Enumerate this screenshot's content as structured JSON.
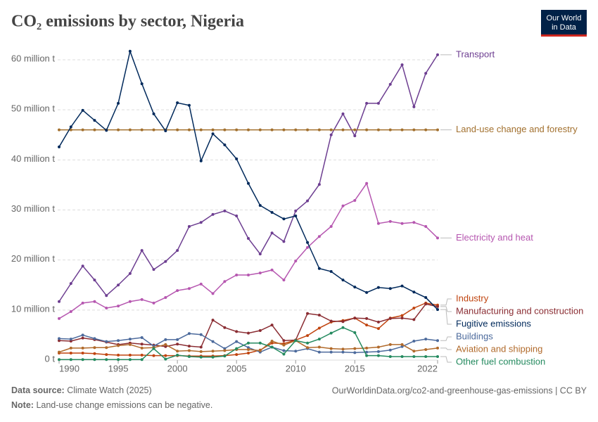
{
  "chart_data": {
    "type": "line",
    "title": "CO₂ emissions by sector, Nigeria",
    "logo": [
      "Our World",
      "in Data"
    ],
    "x": [
      1990,
      1991,
      1992,
      1993,
      1994,
      1995,
      1996,
      1997,
      1998,
      1999,
      2000,
      2001,
      2002,
      2003,
      2004,
      2005,
      2006,
      2007,
      2008,
      2009,
      2010,
      2011,
      2012,
      2013,
      2014,
      2015,
      2016,
      2017,
      2018,
      2019,
      2020,
      2021,
      2022
    ],
    "xlim": [
      1990,
      2022
    ],
    "xticks": [
      1990,
      1995,
      2000,
      2005,
      2010,
      2015,
      2022
    ],
    "ylim": [
      0,
      62
    ],
    "yticks": [
      {
        "value": 0,
        "label": "0 t"
      },
      {
        "value": 10,
        "label": "10 million t"
      },
      {
        "value": 20,
        "label": "20 million t"
      },
      {
        "value": 30,
        "label": "30 million t"
      },
      {
        "value": 40,
        "label": "40 million t"
      },
      {
        "value": 50,
        "label": "50 million t"
      },
      {
        "value": 60,
        "label": "60 million t"
      }
    ],
    "grid": true,
    "series": [
      {
        "name": "Transport",
        "color": "#6d3e91",
        "values": [
          11.7,
          15.3,
          18.8,
          16.0,
          12.9,
          15.0,
          17.3,
          21.9,
          18.1,
          19.7,
          21.9,
          26.7,
          27.5,
          29.1,
          29.8,
          28.8,
          24.3,
          21.2,
          25.4,
          23.7,
          29.8,
          31.8,
          35.1,
          45.0,
          49.2,
          44.8,
          51.3,
          51.3,
          55.1,
          59.0,
          50.6,
          57.3,
          61.0
        ]
      },
      {
        "name": "Land-use change and forestry",
        "color": "#a2702e",
        "values": [
          46,
          46,
          46,
          46,
          46,
          46,
          46,
          46,
          46,
          46,
          46,
          46,
          46,
          46,
          46,
          46,
          46,
          46,
          46,
          46,
          46,
          46,
          46,
          46,
          46,
          46,
          46,
          46,
          46,
          46,
          46,
          46,
          46
        ]
      },
      {
        "name": "Electricity and heat",
        "color": "#b657b0",
        "values": [
          8.3,
          9.7,
          11.4,
          11.7,
          10.4,
          10.8,
          11.7,
          12.1,
          11.4,
          12.5,
          13.9,
          14.3,
          15.2,
          13.3,
          15.7,
          17.0,
          17.0,
          17.4,
          18.0,
          16.0,
          19.8,
          22.5,
          24.7,
          26.7,
          30.8,
          31.9,
          35.3,
          27.3,
          27.7,
          27.3,
          27.5,
          26.7,
          24.4
        ]
      },
      {
        "name": "Industry",
        "color": "#c0440f",
        "values": [
          1.4,
          1.4,
          1.4,
          1.3,
          1.1,
          1.0,
          1.0,
          1.0,
          0.9,
          0.9,
          0.9,
          0.8,
          0.8,
          0.8,
          0.9,
          1.1,
          1.4,
          2.0,
          3.4,
          3.3,
          4.0,
          4.9,
          6.4,
          7.6,
          7.9,
          8.4,
          7.0,
          6.3,
          8.4,
          8.9,
          10.4,
          11.4,
          11.0
        ]
      },
      {
        "name": "Manufacturing and construction",
        "color": "#8a2c32",
        "values": [
          3.9,
          3.8,
          4.4,
          4.1,
          3.6,
          3.1,
          3.4,
          3.2,
          3.0,
          2.7,
          3.2,
          2.8,
          2.6,
          8.0,
          6.5,
          5.7,
          5.4,
          5.9,
          7.0,
          3.9,
          4.0,
          9.3,
          9.0,
          7.8,
          7.7,
          8.4,
          8.3,
          7.6,
          8.3,
          8.4,
          8.1,
          11.2,
          10.7
        ]
      },
      {
        "name": "Fugitive emissions",
        "color": "#00295b",
        "values": [
          42.6,
          46.6,
          49.9,
          47.9,
          45.9,
          51.3,
          61.7,
          55.2,
          49.2,
          45.8,
          51.4,
          50.9,
          39.8,
          45.2,
          43.0,
          40.2,
          35.3,
          30.9,
          29.5,
          28.2,
          28.8,
          23.5,
          18.3,
          17.7,
          16.0,
          14.6,
          13.5,
          14.5,
          14.3,
          14.8,
          13.6,
          12.5,
          10.1
        ]
      },
      {
        "name": "Buildings",
        "color": "#4c6a9c",
        "values": [
          4.3,
          4.2,
          5.0,
          4.3,
          3.7,
          3.9,
          4.2,
          4.5,
          2.8,
          4.1,
          4.1,
          5.3,
          5.1,
          3.7,
          2.3,
          3.7,
          2.5,
          1.6,
          2.6,
          1.9,
          1.8,
          2.3,
          1.6,
          1.6,
          1.6,
          1.5,
          1.6,
          1.7,
          2.0,
          2.7,
          3.8,
          4.2,
          3.9
        ]
      },
      {
        "name": "Aviation and shipping",
        "color": "#b16a2b",
        "values": [
          1.6,
          2.4,
          2.4,
          2.5,
          2.5,
          2.9,
          3.1,
          2.4,
          2.5,
          3.1,
          1.8,
          1.9,
          1.7,
          1.8,
          1.9,
          2.1,
          2.1,
          1.9,
          3.8,
          3.0,
          3.9,
          2.5,
          2.6,
          2.3,
          2.2,
          2.3,
          2.4,
          2.6,
          3.1,
          3.1,
          1.8,
          2.1,
          2.4
        ]
      },
      {
        "name": "Other fuel combustion",
        "color": "#248a5f",
        "values": [
          0.1,
          0.1,
          0.1,
          0.1,
          0.1,
          0.1,
          0.1,
          0.1,
          2.3,
          0.2,
          1.0,
          0.7,
          0.6,
          0.6,
          0.8,
          2.3,
          3.4,
          3.4,
          2.6,
          1.2,
          3.9,
          3.4,
          4.2,
          5.4,
          6.5,
          5.5,
          0.9,
          0.9,
          0.7,
          0.7,
          0.7,
          0.7,
          0.7
        ]
      }
    ],
    "source_label": "Data source:",
    "source": "Climate Watch (2025)",
    "url": "OurWorldinData.org/co2-and-greenhouse-gas-emissions | CC BY",
    "note_label": "Note:",
    "note": "Land-use change emissions can be negative."
  }
}
